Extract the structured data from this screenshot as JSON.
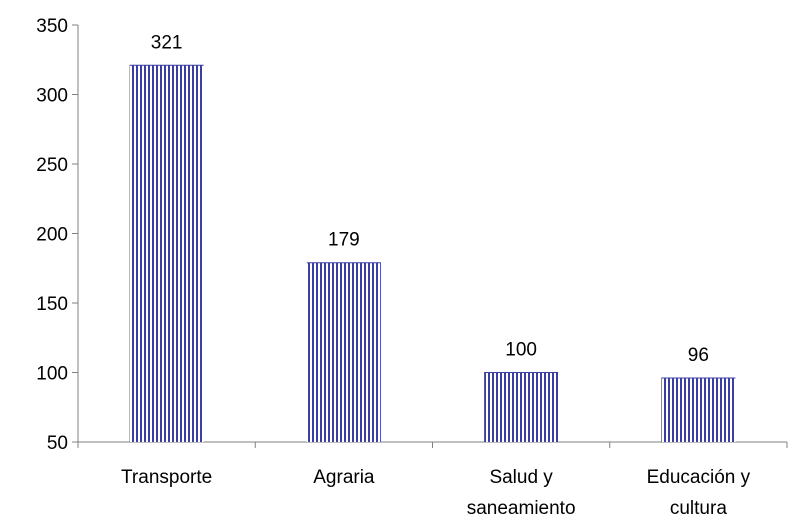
{
  "chart_data": {
    "type": "bar",
    "categories": [
      [
        "Transporte"
      ],
      [
        "Agraria"
      ],
      [
        "Salud y",
        "saneamiento"
      ],
      [
        "Educación y",
        "cultura"
      ]
    ],
    "values": [
      321,
      179,
      100,
      96
    ],
    "data_labels": [
      "321",
      "179",
      "100",
      "96"
    ],
    "y_ticks": [
      50,
      100,
      150,
      200,
      250,
      300,
      350
    ],
    "ylim": [
      50,
      350
    ],
    "title": "",
    "xlabel": "",
    "ylabel": "",
    "grid": false,
    "bar_color": "#3b3fa3",
    "bar_pattern": "vertical-stripes"
  }
}
